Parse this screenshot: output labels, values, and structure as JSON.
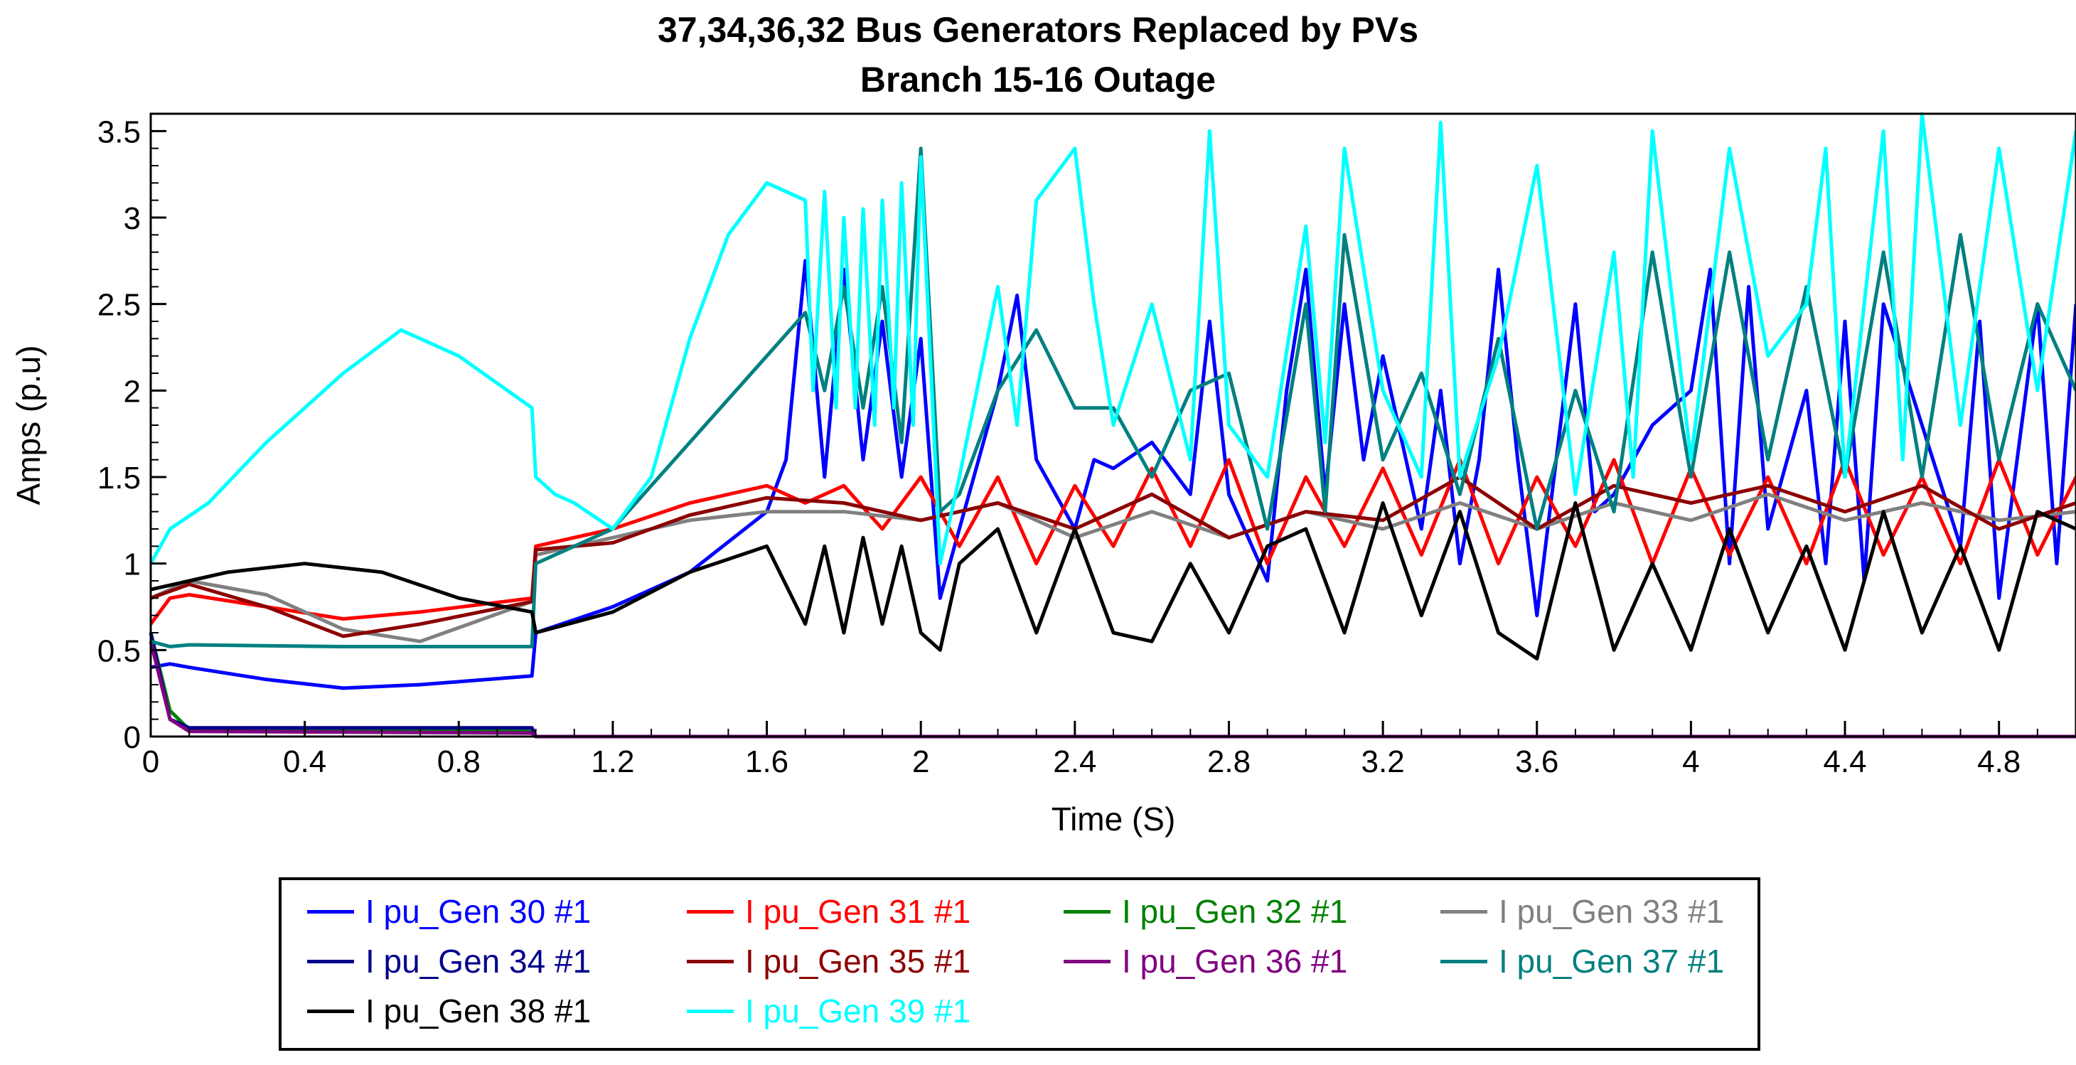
{
  "chart_data": {
    "type": "line",
    "title": "37,34,36,32  Bus Generators Replaced by PVs",
    "subtitle": "Branch 15-16 Outage",
    "xlabel": "Time (S)",
    "ylabel": "Amps (p.u)",
    "xlim": [
      0,
      5.0
    ],
    "ylim": [
      0,
      3.6
    ],
    "xticks": [
      "0",
      "0.4",
      "0.8",
      "1.2",
      "1.6",
      "2",
      "2.4",
      "2.8",
      "3.2",
      "3.6",
      "4",
      "4.4",
      "4.8"
    ],
    "xtick_values": [
      0,
      0.4,
      0.8,
      1.2,
      1.6,
      2.0,
      2.4,
      2.8,
      3.2,
      3.6,
      4.0,
      4.4,
      4.8
    ],
    "yticks": [
      "0",
      "0.5",
      "1",
      "1.5",
      "2",
      "2.5",
      "3",
      "3.5"
    ],
    "ytick_values": [
      0,
      0.5,
      1,
      1.5,
      2,
      2.5,
      3,
      3.5
    ],
    "legend_position": "bottom",
    "series": [
      {
        "name": "I pu_Gen 30 #1",
        "color": "#0000ff",
        "x": [
          0,
          0.05,
          0.1,
          0.3,
          0.5,
          0.7,
          0.99,
          1.0,
          1.2,
          1.4,
          1.6,
          1.65,
          1.7,
          1.75,
          1.8,
          1.85,
          1.9,
          1.95,
          2.0,
          2.05,
          2.1,
          2.2,
          2.25,
          2.3,
          2.4,
          2.45,
          2.5,
          2.6,
          2.7,
          2.75,
          2.8,
          2.9,
          2.95,
          3.0,
          3.05,
          3.1,
          3.15,
          3.2,
          3.3,
          3.35,
          3.4,
          3.45,
          3.5,
          3.55,
          3.6,
          3.7,
          3.75,
          3.8,
          3.9,
          4.0,
          4.05,
          4.1,
          4.15,
          4.2,
          4.3,
          4.35,
          4.4,
          4.45,
          4.5,
          4.6,
          4.7,
          4.75,
          4.8,
          4.9,
          4.95,
          5.0
        ],
        "y": [
          0.4,
          0.42,
          0.4,
          0.33,
          0.28,
          0.3,
          0.35,
          0.6,
          0.75,
          0.95,
          1.3,
          1.6,
          2.75,
          1.5,
          2.7,
          1.6,
          2.4,
          1.5,
          2.3,
          0.8,
          1.2,
          2.0,
          2.55,
          1.6,
          1.2,
          1.6,
          1.55,
          1.7,
          1.4,
          2.4,
          1.4,
          0.9,
          2.0,
          2.7,
          1.4,
          2.5,
          1.6,
          2.2,
          1.2,
          2.0,
          1.0,
          1.6,
          2.7,
          1.6,
          0.7,
          2.5,
          1.3,
          1.4,
          1.8,
          2.0,
          2.7,
          1.0,
          2.6,
          1.2,
          2.0,
          1.0,
          2.4,
          0.9,
          2.5,
          1.8,
          1.1,
          2.4,
          0.8,
          2.5,
          1.0,
          2.5
        ]
      },
      {
        "name": "I pu_Gen 31 #1",
        "color": "#ff0000",
        "x": [
          0,
          0.05,
          0.1,
          0.3,
          0.5,
          0.7,
          0.99,
          1.0,
          1.2,
          1.4,
          1.6,
          1.7,
          1.8,
          1.9,
          2.0,
          2.1,
          2.2,
          2.3,
          2.4,
          2.5,
          2.6,
          2.7,
          2.8,
          2.9,
          3.0,
          3.1,
          3.2,
          3.3,
          3.4,
          3.5,
          3.6,
          3.7,
          3.8,
          3.9,
          4.0,
          4.1,
          4.2,
          4.3,
          4.4,
          4.5,
          4.6,
          4.7,
          4.8,
          4.9,
          5.0
        ],
        "y": [
          0.65,
          0.8,
          0.82,
          0.75,
          0.68,
          0.72,
          0.8,
          1.1,
          1.2,
          1.35,
          1.45,
          1.35,
          1.45,
          1.2,
          1.5,
          1.1,
          1.5,
          1.0,
          1.45,
          1.1,
          1.55,
          1.1,
          1.6,
          1.0,
          1.5,
          1.1,
          1.55,
          1.05,
          1.6,
          1.0,
          1.5,
          1.1,
          1.6,
          1.0,
          1.55,
          1.05,
          1.5,
          1.0,
          1.6,
          1.05,
          1.5,
          1.0,
          1.6,
          1.05,
          1.5
        ]
      },
      {
        "name": "I pu_Gen 32 #1",
        "color": "#008000",
        "x": [
          0,
          0.05,
          0.1,
          0.99,
          1.0,
          1.2,
          5.0
        ],
        "y": [
          0.6,
          0.15,
          0.04,
          0.03,
          0.0,
          0.0,
          0.0
        ]
      },
      {
        "name": "I pu_Gen 33 #1",
        "color": "#808080",
        "x": [
          0,
          0.1,
          0.3,
          0.5,
          0.7,
          0.99,
          1.0,
          1.2,
          1.4,
          1.6,
          1.8,
          2.0,
          2.2,
          2.4,
          2.6,
          2.8,
          3.0,
          3.2,
          3.4,
          3.6,
          3.8,
          4.0,
          4.2,
          4.4,
          4.6,
          4.8,
          5.0
        ],
        "y": [
          0.8,
          0.9,
          0.82,
          0.62,
          0.55,
          0.78,
          1.05,
          1.15,
          1.25,
          1.3,
          1.3,
          1.25,
          1.35,
          1.15,
          1.3,
          1.15,
          1.3,
          1.2,
          1.35,
          1.2,
          1.35,
          1.25,
          1.4,
          1.25,
          1.35,
          1.25,
          1.3
        ]
      },
      {
        "name": "I pu_Gen 34 #1",
        "color": "#00008b",
        "x": [
          0,
          0.05,
          0.1,
          0.99,
          1.0,
          1.2,
          5.0
        ],
        "y": [
          0.6,
          0.1,
          0.05,
          0.05,
          0.0,
          0.0,
          0.0
        ]
      },
      {
        "name": "I pu_Gen 35 #1",
        "color": "#8b0000",
        "x": [
          0,
          0.1,
          0.3,
          0.5,
          0.7,
          0.99,
          1.0,
          1.2,
          1.4,
          1.6,
          1.8,
          2.0,
          2.2,
          2.4,
          2.6,
          2.8,
          3.0,
          3.2,
          3.4,
          3.6,
          3.8,
          4.0,
          4.2,
          4.4,
          4.6,
          4.8,
          5.0
        ],
        "y": [
          0.8,
          0.88,
          0.75,
          0.58,
          0.65,
          0.78,
          1.08,
          1.12,
          1.28,
          1.38,
          1.35,
          1.25,
          1.35,
          1.2,
          1.4,
          1.15,
          1.3,
          1.25,
          1.5,
          1.2,
          1.45,
          1.35,
          1.45,
          1.3,
          1.45,
          1.2,
          1.35
        ]
      },
      {
        "name": "I pu_Gen 36 #1",
        "color": "#800080",
        "x": [
          0,
          0.05,
          0.1,
          0.99,
          1.0,
          5.0
        ],
        "y": [
          0.55,
          0.1,
          0.03,
          0.02,
          0.0,
          0.0
        ]
      },
      {
        "name": "I pu_Gen 37 #1",
        "color": "#008080",
        "x": [
          0,
          0.05,
          0.1,
          0.5,
          0.99,
          1.0,
          1.2,
          1.4,
          1.6,
          1.7,
          1.75,
          1.8,
          1.85,
          1.9,
          1.95,
          2.0,
          2.05,
          2.1,
          2.2,
          2.3,
          2.4,
          2.5,
          2.6,
          2.7,
          2.8,
          2.9,
          3.0,
          3.05,
          3.1,
          3.2,
          3.3,
          3.4,
          3.5,
          3.6,
          3.7,
          3.8,
          3.9,
          4.0,
          4.1,
          4.2,
          4.3,
          4.4,
          4.5,
          4.6,
          4.7,
          4.8,
          4.9,
          5.0
        ],
        "y": [
          0.55,
          0.52,
          0.53,
          0.52,
          0.52,
          1.0,
          1.2,
          1.7,
          2.2,
          2.45,
          2.0,
          2.6,
          1.9,
          2.6,
          1.7,
          3.4,
          1.3,
          1.4,
          2.0,
          2.35,
          1.9,
          1.9,
          1.5,
          2.0,
          2.1,
          1.2,
          2.5,
          1.3,
          2.9,
          1.6,
          2.1,
          1.4,
          2.3,
          1.2,
          2.0,
          1.3,
          2.8,
          1.5,
          2.8,
          1.6,
          2.6,
          1.5,
          2.8,
          1.5,
          2.9,
          1.6,
          2.5,
          2.0
        ]
      },
      {
        "name": "I pu_Gen 38 #1",
        "color": "#000000",
        "x": [
          0,
          0.1,
          0.2,
          0.4,
          0.6,
          0.8,
          0.99,
          1.0,
          1.2,
          1.4,
          1.6,
          1.7,
          1.75,
          1.8,
          1.85,
          1.9,
          1.95,
          2.0,
          2.05,
          2.1,
          2.2,
          2.3,
          2.4,
          2.5,
          2.6,
          2.7,
          2.8,
          2.9,
          3.0,
          3.1,
          3.2,
          3.3,
          3.4,
          3.5,
          3.6,
          3.7,
          3.8,
          3.9,
          4.0,
          4.1,
          4.2,
          4.3,
          4.4,
          4.5,
          4.6,
          4.7,
          4.8,
          4.9,
          5.0
        ],
        "y": [
          0.85,
          0.9,
          0.95,
          1.0,
          0.95,
          0.8,
          0.72,
          0.6,
          0.72,
          0.95,
          1.1,
          0.65,
          1.1,
          0.6,
          1.15,
          0.65,
          1.1,
          0.6,
          0.5,
          1.0,
          1.2,
          0.6,
          1.2,
          0.6,
          0.55,
          1.0,
          0.6,
          1.1,
          1.2,
          0.6,
          1.35,
          0.7,
          1.3,
          0.6,
          0.45,
          1.35,
          0.5,
          1.0,
          0.5,
          1.2,
          0.6,
          1.1,
          0.5,
          1.3,
          0.6,
          1.1,
          0.5,
          1.3,
          1.2
        ]
      },
      {
        "name": "I pu_Gen 39 #1",
        "color": "#00ffff",
        "x": [
          0,
          0.05,
          0.15,
          0.3,
          0.5,
          0.65,
          0.8,
          0.99,
          1.0,
          1.05,
          1.1,
          1.2,
          1.3,
          1.4,
          1.5,
          1.6,
          1.7,
          1.72,
          1.75,
          1.78,
          1.8,
          1.83,
          1.85,
          1.88,
          1.9,
          1.93,
          1.95,
          1.98,
          2.0,
          2.05,
          2.1,
          2.2,
          2.25,
          2.3,
          2.4,
          2.45,
          2.5,
          2.6,
          2.7,
          2.75,
          2.8,
          2.9,
          3.0,
          3.05,
          3.1,
          3.2,
          3.3,
          3.35,
          3.4,
          3.5,
          3.6,
          3.7,
          3.8,
          3.85,
          3.9,
          4.0,
          4.1,
          4.2,
          4.3,
          4.35,
          4.4,
          4.5,
          4.55,
          4.6,
          4.7,
          4.8,
          4.9,
          5.0
        ],
        "y": [
          1.0,
          1.2,
          1.35,
          1.7,
          2.1,
          2.35,
          2.2,
          1.9,
          1.5,
          1.4,
          1.35,
          1.2,
          1.5,
          2.3,
          2.9,
          3.2,
          3.1,
          2.0,
          3.15,
          1.9,
          3.0,
          1.9,
          3.05,
          1.8,
          3.1,
          1.9,
          3.2,
          1.8,
          3.35,
          1.0,
          1.5,
          2.6,
          1.8,
          3.1,
          3.4,
          2.5,
          1.8,
          2.5,
          1.6,
          3.5,
          1.8,
          1.5,
          2.95,
          1.7,
          3.4,
          2.0,
          1.5,
          3.55,
          1.5,
          2.2,
          3.3,
          1.4,
          2.8,
          1.5,
          3.5,
          1.6,
          3.4,
          2.2,
          2.5,
          3.4,
          1.5,
          3.5,
          1.6,
          3.6,
          1.8,
          3.4,
          2.0,
          3.5
        ]
      }
    ]
  }
}
